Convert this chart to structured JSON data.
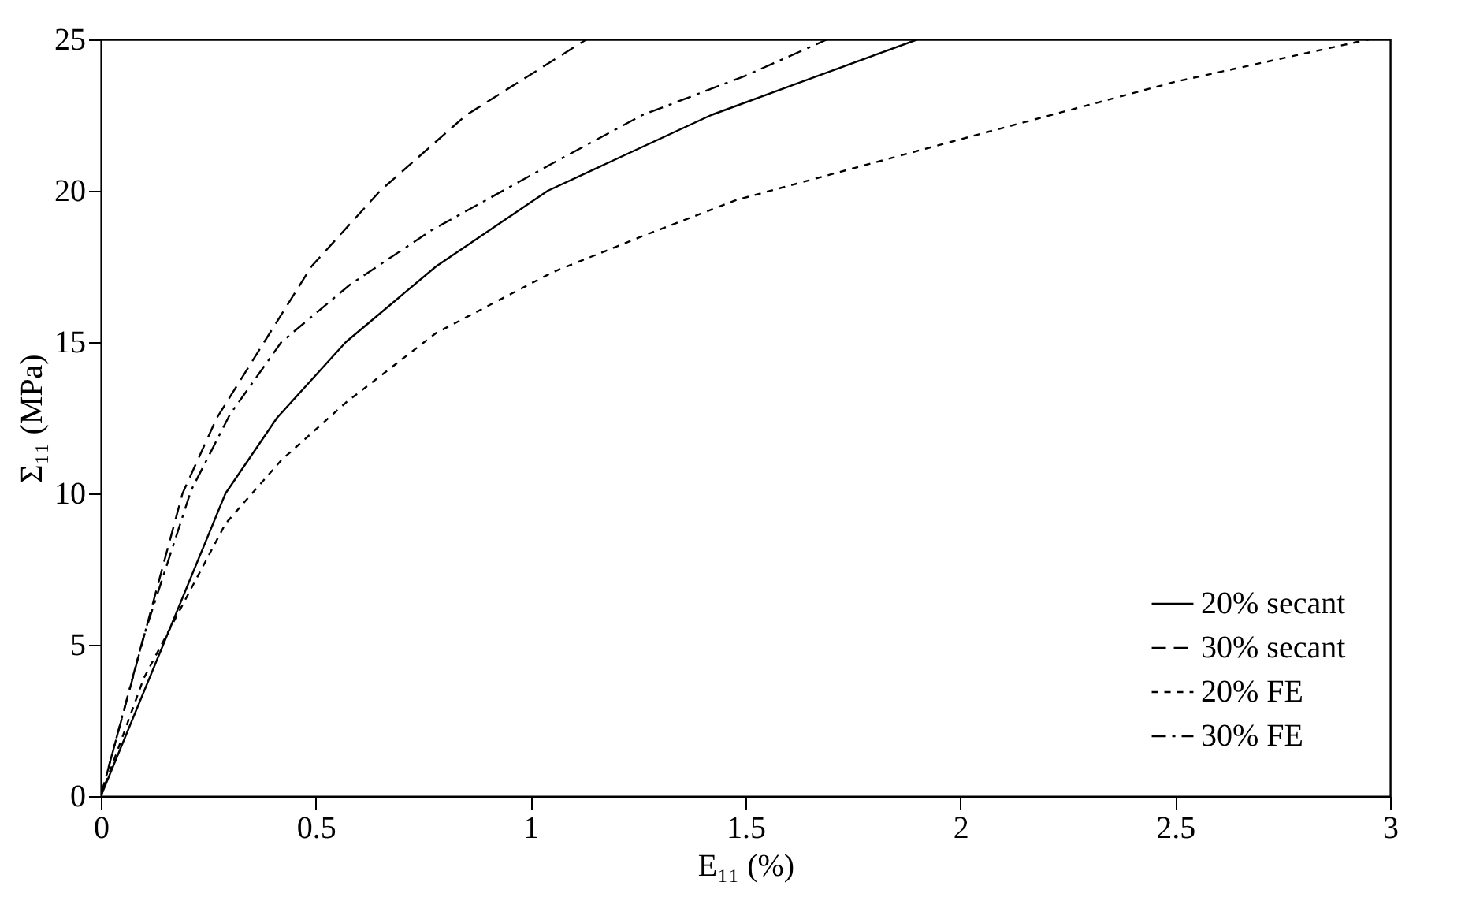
{
  "chart_data": {
    "type": "line",
    "xlabel": "E₁₁ (%)",
    "ylabel": "Σ₁₁ (MPa)",
    "xlim": [
      0,
      3
    ],
    "ylim": [
      0,
      25
    ],
    "xticks": [
      0,
      0.5,
      1,
      1.5,
      2,
      2.5,
      3
    ],
    "yticks": [
      0,
      5,
      10,
      15,
      20,
      25
    ],
    "grid": false,
    "legend": "bottom right",
    "marker": "none",
    "series": [
      {
        "name": "20% secant",
        "color": "#000000",
        "line_style": "solid",
        "x": [
          0,
          0.29,
          0.41,
          0.57,
          0.78,
          1.04,
          1.42,
          1.9
        ],
        "values": [
          0,
          10,
          12.5,
          15,
          17.5,
          20,
          22.5,
          25
        ]
      },
      {
        "name": "30% secant",
        "color": "#000000",
        "line_style": "dashed",
        "x": [
          0,
          0.19,
          0.27,
          0.38,
          0.49,
          0.65,
          0.85,
          1.13
        ],
        "values": [
          0,
          10,
          12.5,
          15,
          17.5,
          20,
          22.5,
          25
        ]
      },
      {
        "name": "20% FE",
        "color": "#000000",
        "line_style": "dotted",
        "x": [
          0,
          0.1,
          0.29,
          0.42,
          0.57,
          0.78,
          1.05,
          1.26,
          1.48,
          2.0,
          2.5,
          2.95
        ],
        "values": [
          0,
          3.9,
          9,
          11.1,
          13,
          15.3,
          17.3,
          18.5,
          19.7,
          21.7,
          23.6,
          25
        ]
      },
      {
        "name": "30% FE",
        "color": "#000000",
        "line_style": "dashdot",
        "x": [
          0,
          0.1,
          0.21,
          0.3,
          0.42,
          0.58,
          0.77,
          1.05,
          1.26,
          1.5,
          1.69
        ],
        "values": [
          0,
          5.3,
          10.1,
          12.6,
          15,
          16.9,
          18.7,
          20.9,
          22.5,
          23.8,
          25
        ]
      }
    ]
  }
}
